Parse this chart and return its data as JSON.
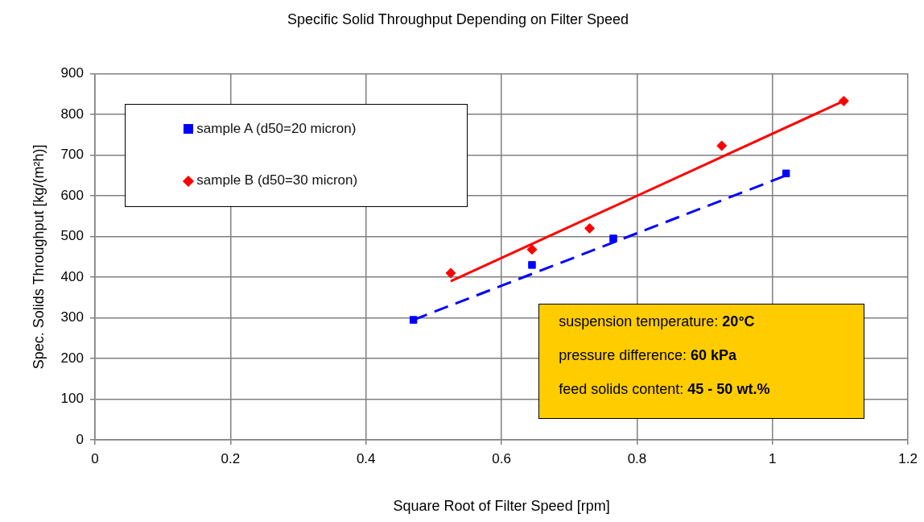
{
  "chart_data": {
    "type": "scatter",
    "title": "Specific Solid Throughput Depending on Filter Speed",
    "xlabel": "Square Root of Filter Speed [rpm]",
    "ylabel": "Spec. Solids Throughput [kg/(m²h)]",
    "xlim": [
      0,
      1.2
    ],
    "xticks": [
      0,
      0.2,
      0.4,
      0.6,
      0.8,
      1,
      1.2
    ],
    "ylim": [
      0,
      900
    ],
    "yticks": [
      0,
      100,
      200,
      300,
      400,
      500,
      600,
      700,
      800,
      900
    ],
    "grid": true,
    "legend": "top left",
    "series": [
      {
        "name": "sample A (d50=20 micron)",
        "color": "#0000ff",
        "marker": "square",
        "x": [
          0.47,
          0.645,
          0.765,
          1.02
        ],
        "values": [
          295,
          430,
          495,
          655
        ]
      },
      {
        "name": "sample B (d50=30 micron)",
        "color": "#ff0000",
        "marker": "diamond",
        "x": [
          0.525,
          0.645,
          0.73,
          0.925,
          1.105
        ],
        "values": [
          410,
          468,
          520,
          723,
          833
        ]
      },
      {
        "type": "line",
        "color": "#0000ff",
        "marker": "none",
        "line_style": "dashed",
        "x": [
          0.47,
          1.02
        ],
        "values": [
          295,
          650
        ]
      },
      {
        "type": "line",
        "color": "#ff0000",
        "marker": "none",
        "line_style": "solid",
        "x": [
          0.525,
          1.105
        ],
        "values": [
          390,
          833
        ]
      }
    ],
    "annotations": [
      "suspension temperature: 20°C",
      "pressure difference: 60 kPa",
      "feed solids content: 45 - 50 wt.%"
    ]
  }
}
